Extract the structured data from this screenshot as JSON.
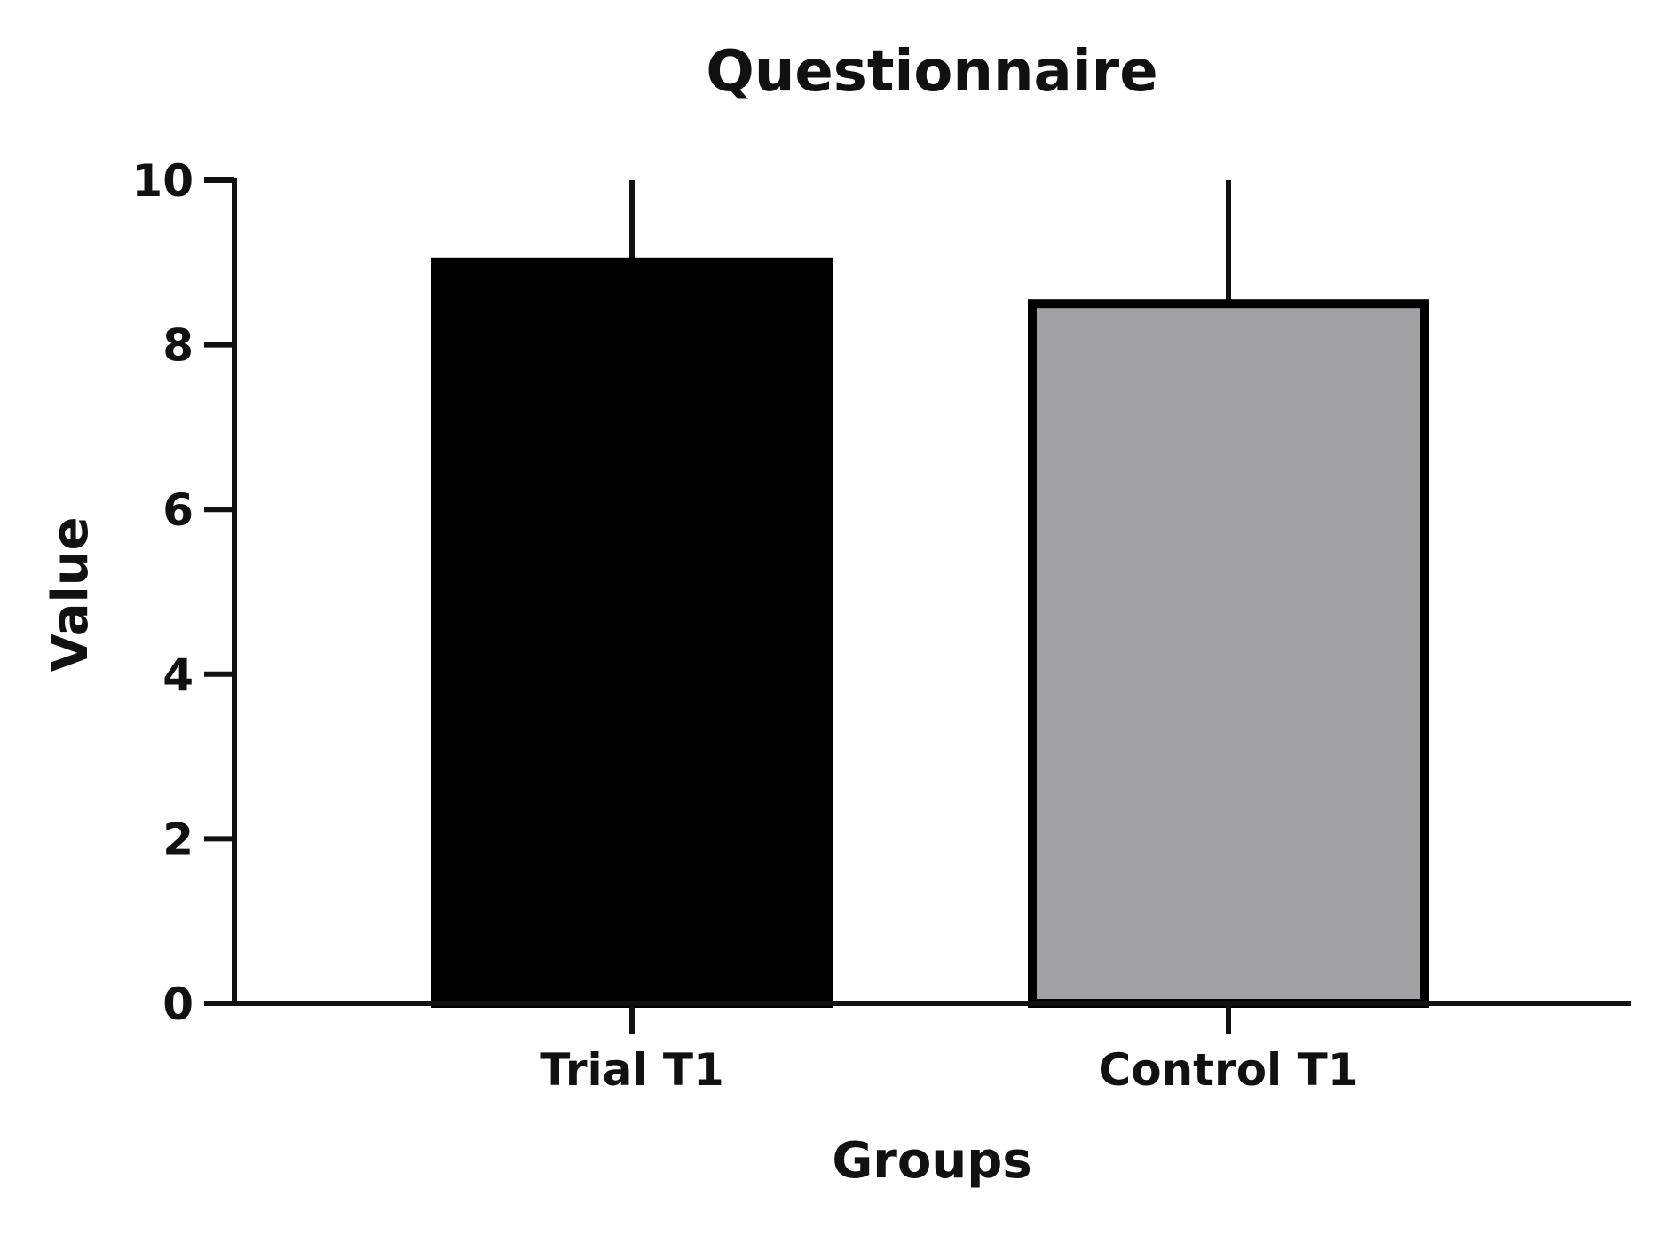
{
  "chart_data": {
    "type": "bar",
    "title": "Questionnaire",
    "xlabel": "Groups",
    "ylabel": "Value",
    "categories": [
      "Trial T1",
      "Control T1"
    ],
    "values": [
      9.0,
      8.5
    ],
    "error_upper": [
      10.0,
      10.0
    ],
    "ylim": [
      0,
      10
    ],
    "yticks": [
      0,
      2,
      4,
      6,
      8,
      10
    ],
    "ytick_labels": [
      "0",
      "2",
      "4",
      "6",
      "8",
      "10"
    ],
    "bar_colors": [
      "#000000",
      "#a2a1a6"
    ],
    "bar_stroke": "#000000",
    "grid": false,
    "legend": "none"
  }
}
